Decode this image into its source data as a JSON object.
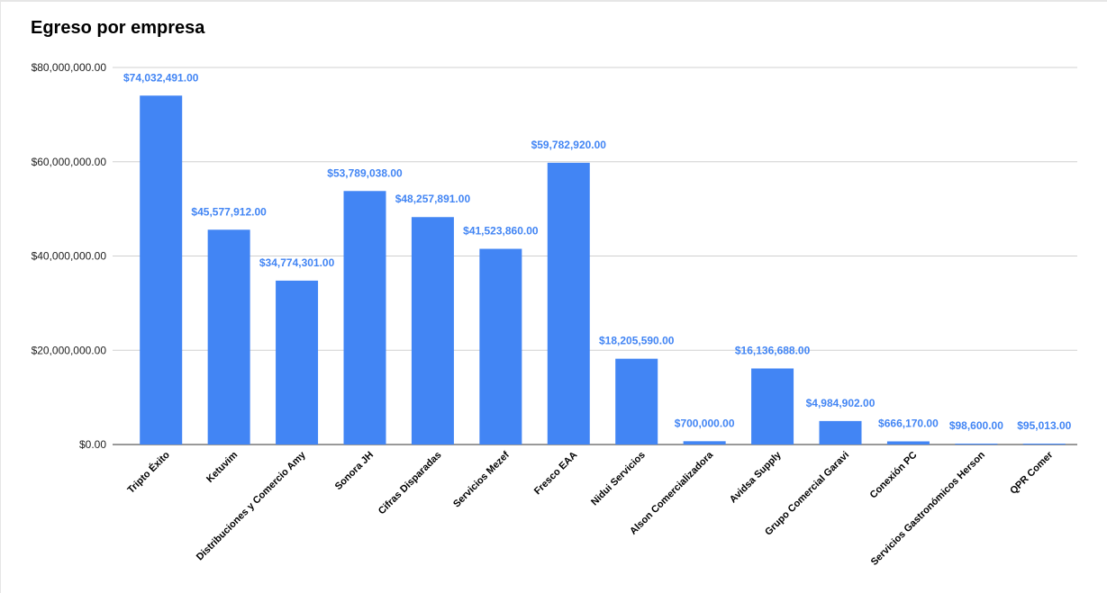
{
  "colors": {
    "bar": "#4285f4",
    "data_label": "#4285f4",
    "gridline": "#d0d0d0",
    "baseline": "#333333",
    "tick_text": "#222222"
  },
  "chart_data": {
    "type": "bar",
    "title": "Egreso por empresa",
    "xlabel": "",
    "ylabel": "",
    "ylim": [
      0,
      80000000
    ],
    "grid": true,
    "legend": "none",
    "y_ticks": [
      0,
      20000000,
      40000000,
      60000000,
      80000000
    ],
    "y_tick_labels": [
      "$0.00",
      "$20,000,000.00",
      "$40,000,000.00",
      "$60,000,000.00",
      "$80,000,000.00"
    ],
    "categories": [
      "Tripto Éxito",
      "Ketuvim",
      "Distribuciones y Comercio Amy",
      "Sonora JH",
      "Cifras Disparadas",
      "Servicios Mezef",
      "Fresco EAA",
      "Nidui Servicios",
      "Alson Comercializadora",
      "Avidsa Supply",
      "Grupo Comercial Garavi",
      "Conexión PC",
      "Servicios Gastronómicos Herson",
      "QPR Comer"
    ],
    "values": [
      74032491,
      45577912,
      34774301,
      53789038,
      48257891,
      41523860,
      59782920,
      18205590,
      700000,
      16136688,
      4984902,
      666170,
      98600,
      95013
    ],
    "data_labels": [
      "$74,032,491.00",
      "$45,577,912.00",
      "$34,774,301.00",
      "$53,789,038.00",
      "$48,257,891.00",
      "$41,523,860.00",
      "$59,782,920.00",
      "$18,205,590.00",
      "$700,000.00",
      "$16,136,688.00",
      "$4,984,902.00",
      "$666,170.00",
      "$98,600.00",
      "$95,013.00"
    ]
  }
}
